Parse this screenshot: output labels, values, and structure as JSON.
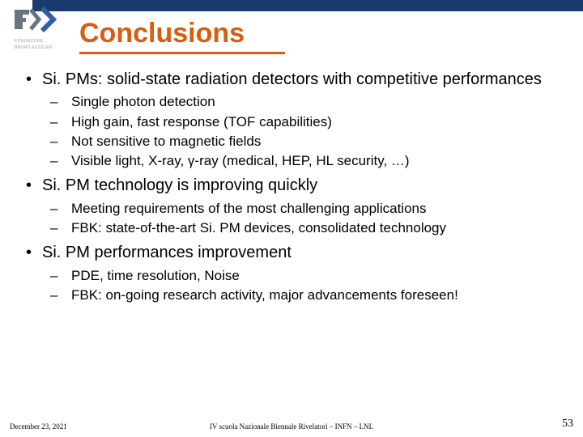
{
  "colors": {
    "top_bar": "#1b3b6f",
    "title": "#d95c0f",
    "underline": "#d95c0f",
    "logo_dark": "#6b7280",
    "logo_blue": "#2f5fa8",
    "text": "#000000"
  },
  "logo": {
    "sub1": "FONDAZIONE",
    "sub2": "BRUNO KESSLER"
  },
  "title": "Conclusions",
  "bullets": [
    {
      "text": "Si. PMs: solid-state radiation detectors with competitive performances",
      "sub": [
        "Single photon detection",
        "High gain, fast response (TOF capabilities)",
        "Not sensitive to magnetic fields",
        "Visible light, X-ray, γ-ray (medical, HEP, HL security, …)"
      ]
    },
    {
      "text": "Si. PM technology is improving quickly",
      "sub": [
        "Meeting requirements of the most challenging applications",
        "FBK: state-of-the-art Si. PM devices, consolidated technology"
      ]
    },
    {
      "text": "Si. PM performances improvement",
      "sub": [
        "PDE, time resolution, Noise",
        "FBK: on-going research activity, major advancements foreseen!"
      ]
    }
  ],
  "footer": {
    "date": "December 23, 2021",
    "center": "IV scuola Nazionale Biennale Rivelatori – INFN – LNL",
    "page": "53"
  }
}
